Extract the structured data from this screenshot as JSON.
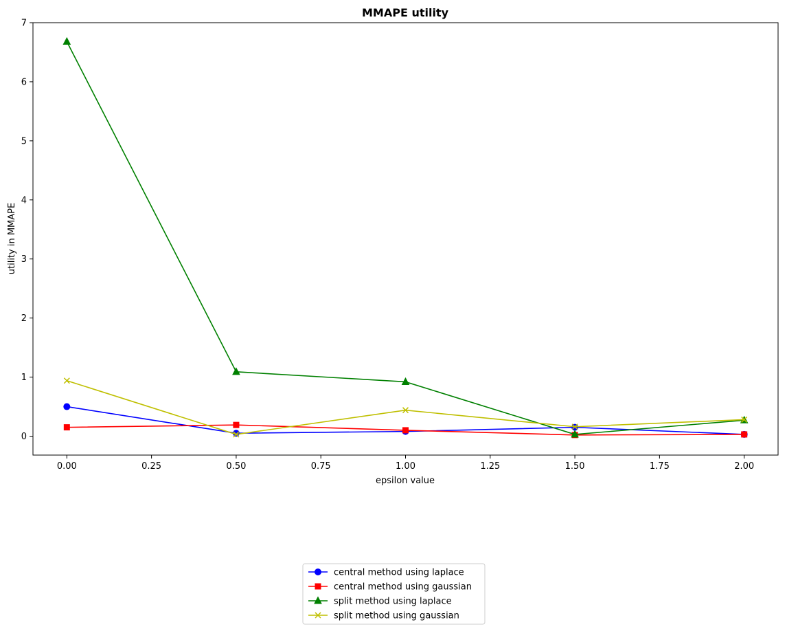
{
  "chart_data": {
    "type": "line",
    "title": "MMAPE utility",
    "xlabel": "epsilon value",
    "ylabel": "utility in MMAPE",
    "x": [
      0.0,
      0.5,
      1.0,
      1.5,
      2.0
    ],
    "xlim": [
      -0.1,
      2.1
    ],
    "ylim": [
      -0.32,
      7.0
    ],
    "xticks": [
      0.0,
      0.25,
      0.5,
      0.75,
      1.0,
      1.25,
      1.5,
      1.75,
      2.0
    ],
    "xtick_labels": [
      "0.00",
      "0.25",
      "0.50",
      "0.75",
      "1.00",
      "1.25",
      "1.50",
      "1.75",
      "2.00"
    ],
    "yticks": [
      0,
      1,
      2,
      3,
      4,
      5,
      6,
      7
    ],
    "ytick_labels": [
      "0",
      "1",
      "2",
      "3",
      "4",
      "5",
      "6",
      "7"
    ],
    "grid": false,
    "legend_position": "bottom-center",
    "series": [
      {
        "name": "central method using laplace",
        "color": "#0000ff",
        "marker": "circle",
        "values": [
          0.5,
          0.05,
          0.08,
          0.15,
          0.03
        ]
      },
      {
        "name": "central method using gaussian",
        "color": "#ff0000",
        "marker": "square",
        "values": [
          0.15,
          0.19,
          0.1,
          0.02,
          0.03
        ]
      },
      {
        "name": "split method using laplace",
        "color": "#008000",
        "marker": "triangle",
        "values": [
          6.68,
          1.09,
          0.92,
          0.03,
          0.27
        ]
      },
      {
        "name": "split method using gaussian",
        "color": "#bfbf00",
        "marker": "x",
        "values": [
          0.94,
          0.03,
          0.44,
          0.16,
          0.28
        ]
      }
    ]
  }
}
